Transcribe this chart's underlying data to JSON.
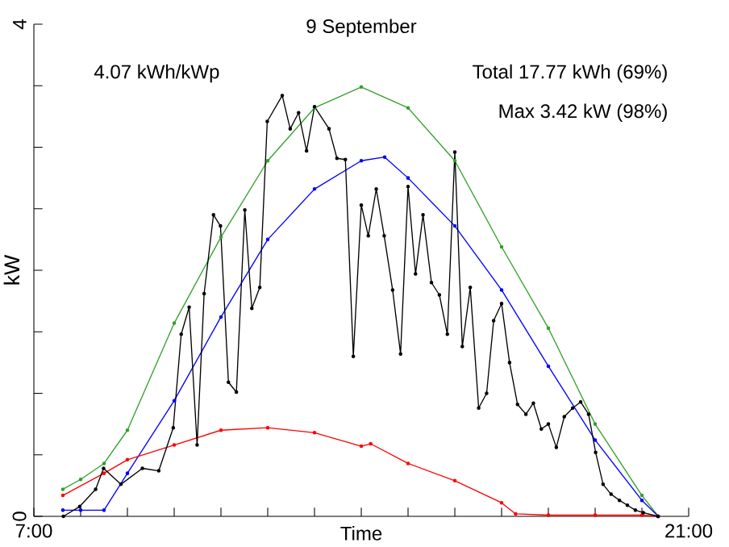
{
  "chart_data": {
    "type": "line",
    "title": "9 September",
    "xlabel": "Time",
    "ylabel": "kW",
    "annotations": [
      "4.07 kWh/kWp",
      "Total 17.77 kWh (69%)",
      "Max 3.42 kW (98%)"
    ],
    "xlim": [
      7,
      21
    ],
    "xticks": [
      {
        "value": 7,
        "label": "7:00"
      },
      {
        "value": 8,
        "label": null
      },
      {
        "value": 9,
        "label": null
      },
      {
        "value": 10,
        "label": null
      },
      {
        "value": 11,
        "label": null
      },
      {
        "value": 12,
        "label": null
      },
      {
        "value": 13,
        "label": null
      },
      {
        "value": 14,
        "label": null
      },
      {
        "value": 15,
        "label": null
      },
      {
        "value": 16,
        "label": null
      },
      {
        "value": 17,
        "label": null
      },
      {
        "value": 18,
        "label": null
      },
      {
        "value": 19,
        "label": null
      },
      {
        "value": 20,
        "label": null
      },
      {
        "value": 21,
        "label": "21:00"
      }
    ],
    "ylim": [
      0,
      4
    ],
    "yticks": [
      0,
      {
        "value": 0.5,
        "label": null
      },
      {
        "value": 1,
        "label": null
      },
      {
        "value": 1.5,
        "label": null
      },
      {
        "value": 2,
        "label": null
      },
      {
        "value": 2.5,
        "label": null
      },
      {
        "value": 3,
        "label": null
      },
      {
        "value": 3.5,
        "label": null
      },
      4
    ],
    "marker": "circle",
    "line_style": "solid",
    "grid": false,
    "series": [
      {
        "color": "#33a02c",
        "x": [
          7.62,
          8.0,
          8.5,
          9.0,
          10.0,
          11.0,
          12.0,
          13.0,
          14.0,
          15.0,
          16.0,
          17.0,
          18.0,
          19.0,
          20.0,
          20.35
        ],
        "values": [
          0.22,
          0.3,
          0.43,
          0.7,
          1.57,
          2.27,
          2.89,
          3.32,
          3.49,
          3.32,
          2.89,
          2.19,
          1.53,
          0.75,
          0.17,
          0
        ]
      },
      {
        "color": "#0000ff",
        "x": [
          7.62,
          8.0,
          8.5,
          9.0,
          10.0,
          11.0,
          12.0,
          13.0,
          14.0,
          14.5,
          15.0,
          16.0,
          17.0,
          18.0,
          19.0,
          20.0,
          20.35
        ],
        "values": [
          0.05,
          0.05,
          0.05,
          0.35,
          0.94,
          1.62,
          2.25,
          2.66,
          2.89,
          2.92,
          2.75,
          2.36,
          1.84,
          1.22,
          0.62,
          0.13,
          0
        ]
      },
      {
        "color": "#ff0000",
        "x": [
          7.62,
          8.5,
          9.0,
          10.0,
          11.0,
          12.0,
          13.0,
          14.0,
          14.2,
          15.0,
          16.0,
          17.0,
          17.3,
          18.0,
          19.0,
          20.0,
          20.35
        ],
        "values": [
          0.17,
          0.35,
          0.46,
          0.58,
          0.7,
          0.72,
          0.68,
          0.57,
          0.59,
          0.43,
          0.29,
          0.11,
          0.02,
          0.01,
          0.01,
          0.01,
          0
        ]
      },
      {
        "color": "#000000",
        "x": [
          7.63,
          7.98,
          8.32,
          8.49,
          8.86,
          9.32,
          9.67,
          9.98,
          10.15,
          10.32,
          10.49,
          10.64,
          10.84,
          10.99,
          11.16,
          11.33,
          11.51,
          11.66,
          11.83,
          11.99,
          12.31,
          12.48,
          12.66,
          12.83,
          13.0,
          13.31,
          13.48,
          13.66,
          13.83,
          14.0,
          14.15,
          14.32,
          14.49,
          14.67,
          14.84,
          15.0,
          15.16,
          15.32,
          15.5,
          15.67,
          15.84,
          16.0,
          16.16,
          16.33,
          16.51,
          16.68,
          16.83,
          17.0,
          17.17,
          17.34,
          17.52,
          17.68,
          17.85,
          18.0,
          18.17,
          18.34,
          18.52,
          18.69,
          18.86,
          19.01,
          19.17,
          19.34,
          19.52,
          19.69,
          19.86,
          20.03,
          20.34
        ],
        "values": [
          0,
          0.08,
          0.22,
          0.39,
          0.26,
          0.39,
          0.37,
          0.72,
          1.48,
          1.7,
          0.58,
          1.81,
          2.45,
          2.36,
          1.09,
          1.01,
          2.49,
          1.69,
          1.86,
          3.21,
          3.42,
          3.15,
          3.28,
          2.97,
          3.33,
          3.15,
          2.91,
          2.9,
          1.3,
          2.53,
          2.28,
          2.66,
          2.28,
          1.84,
          1.32,
          2.68,
          1.97,
          2.45,
          1.9,
          1.8,
          1.48,
          2.96,
          1.38,
          1.86,
          0.88,
          1.0,
          1.59,
          1.73,
          1.25,
          0.91,
          0.83,
          0.92,
          0.71,
          0.75,
          0.56,
          0.81,
          0.88,
          0.93,
          0.83,
          0.52,
          0.26,
          0.18,
          0.13,
          0.09,
          0.05,
          0.03,
          0
        ]
      }
    ]
  }
}
